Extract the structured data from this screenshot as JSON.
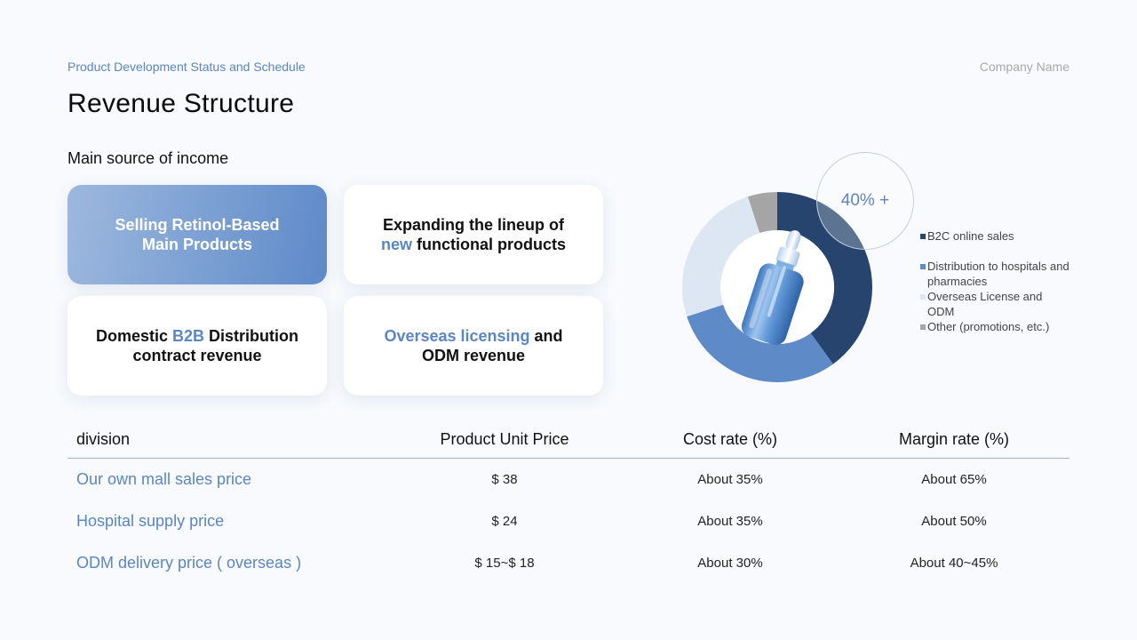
{
  "header": {
    "subtitle": "Product Development Status and Schedule",
    "company": "Company Name",
    "title": "Revenue Structure"
  },
  "section_label": "Main source of income",
  "cards": [
    {
      "line1": "Selling Retinol-Based",
      "line2": "Main Products"
    },
    {
      "line1": "Expanding the lineup of",
      "accent": "new",
      "line2_rest": " functional products"
    },
    {
      "pre": "Domestic ",
      "accent": "B2B",
      "post": " Distribution",
      "line2": "contract revenue"
    },
    {
      "accent": "Overseas licensing",
      "post": " and",
      "line2": "ODM revenue"
    }
  ],
  "callout": "40% +",
  "colors": {
    "accent": "#5b86c4",
    "b2c": "#26446d",
    "distribution": "#5e8ac8",
    "overseas": "#dde6f3",
    "other": "#a5a5a5"
  },
  "chart_data": {
    "type": "pie",
    "categories": [
      "B2C online sales",
      "Distribution to hospitals and pharmacies",
      "Overseas License and ODM",
      "Other (promotions, etc.)"
    ],
    "values": [
      40,
      30,
      25,
      5
    ],
    "title": ""
  },
  "legend": [
    {
      "label": "B2C online sales",
      "color": "#26446d"
    },
    {
      "label": "Distribution to hospitals and pharmacies",
      "color": "#5e8ac8"
    },
    {
      "label": "Overseas License and ODM",
      "color": "#dde6f3"
    },
    {
      "label": "Other (promotions, etc.)",
      "color": "#a5a5a5"
    }
  ],
  "table": {
    "headers": [
      "division",
      "Product Unit Price",
      "Cost rate (%)",
      "Margin rate (%)"
    ],
    "rows": [
      [
        "Our own mall sales price",
        "$ 38",
        "About 35%",
        "About 65%"
      ],
      [
        "Hospital supply price",
        "$ 24",
        "About 35%",
        "About 50%"
      ],
      [
        "ODM delivery price ( overseas )",
        "$ 15~$ 18",
        "About 30%",
        "About 40~45%"
      ]
    ]
  }
}
